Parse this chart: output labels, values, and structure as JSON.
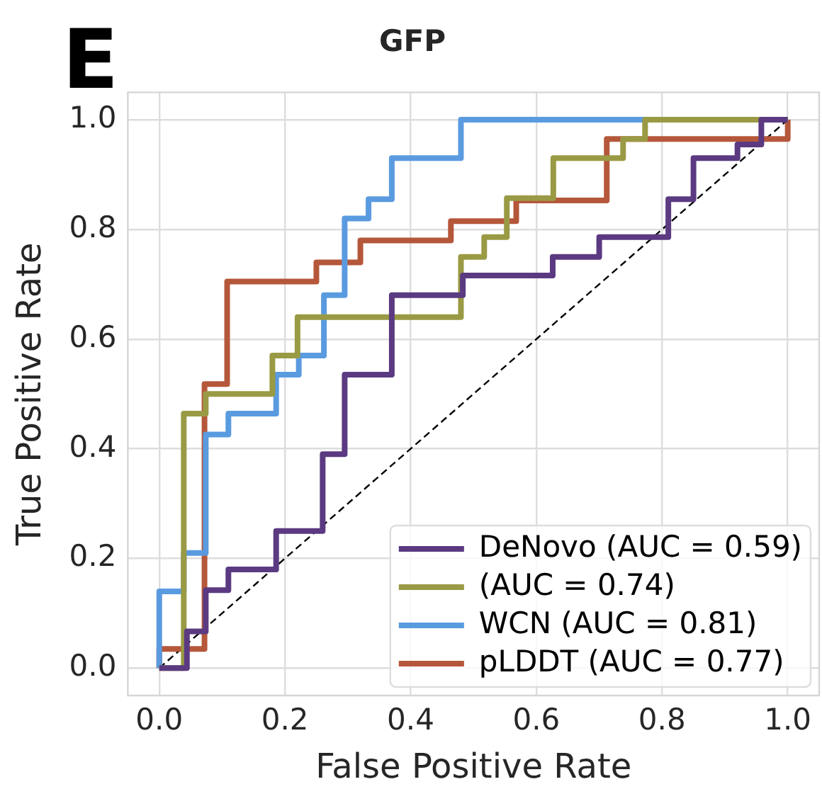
{
  "chart_data": {
    "type": "line",
    "title": "GFP",
    "xlabel": "False Positive Rate",
    "ylabel": "True Positive Rate",
    "annotations": [
      "E"
    ],
    "xlim": [
      -0.05,
      1.05
    ],
    "ylim": [
      -0.05,
      1.05
    ],
    "xticks": [
      {
        "value": 0,
        "label": "0.0"
      },
      0.2,
      0.4,
      0.6,
      0.8,
      {
        "value": 1,
        "label": "1.0"
      }
    ],
    "yticks": [
      {
        "value": 0,
        "label": "0.0"
      },
      0.2,
      0.4,
      0.6,
      0.8,
      {
        "value": 1,
        "label": "1.0"
      }
    ],
    "grid": true,
    "legend": "bottom right",
    "marker": "none",
    "line_style": "solid",
    "series": [
      {
        "name": "DeNovo (AUC = 0.59)",
        "color": "#5b3a82",
        "x": [
          0,
          0.044,
          0.044,
          0.074,
          0.074,
          0.11,
          0.11,
          0.186,
          0.186,
          0.26,
          0.26,
          0.295,
          0.295,
          0.37,
          0.37,
          0.483,
          0.483,
          0.626,
          0.626,
          0.7,
          0.7,
          0.81,
          0.81,
          0.85,
          0.85,
          0.92,
          0.92,
          0.958,
          0.958,
          1
        ],
        "values": [
          0,
          0,
          0.067,
          0.067,
          0.142,
          0.142,
          0.18,
          0.18,
          0.25,
          0.25,
          0.39,
          0.39,
          0.535,
          0.535,
          0.68,
          0.68,
          0.716,
          0.716,
          0.75,
          0.75,
          0.786,
          0.786,
          0.855,
          0.855,
          0.93,
          0.93,
          0.955,
          0.955,
          1,
          1
        ]
      },
      {
        "name": "(AUC = 0.74)",
        "color": "#9a9a45",
        "x": [
          0,
          0.039,
          0.039,
          0.074,
          0.074,
          0.18,
          0.18,
          0.22,
          0.22,
          0.48,
          0.48,
          0.517,
          0.517,
          0.553,
          0.553,
          0.627,
          0.627,
          0.738,
          0.738,
          0.773,
          0.773,
          1
        ],
        "values": [
          0,
          0,
          0.464,
          0.464,
          0.5,
          0.5,
          0.57,
          0.57,
          0.64,
          0.64,
          0.75,
          0.75,
          0.786,
          0.786,
          0.857,
          0.857,
          0.93,
          0.93,
          0.965,
          0.965,
          1,
          1
        ]
      },
      {
        "name": "WCN (AUC = 0.81)",
        "color": "#5a9be0",
        "x": [
          0,
          0,
          0.039,
          0.039,
          0.074,
          0.074,
          0.11,
          0.11,
          0.186,
          0.186,
          0.222,
          0.222,
          0.262,
          0.262,
          0.295,
          0.295,
          0.333,
          0.333,
          0.37,
          0.37,
          0.48,
          0.48,
          1
        ],
        "values": [
          0,
          0.14,
          0.14,
          0.21,
          0.21,
          0.426,
          0.426,
          0.464,
          0.464,
          0.535,
          0.535,
          0.57,
          0.57,
          0.68,
          0.68,
          0.82,
          0.82,
          0.855,
          0.855,
          0.93,
          0.93,
          1,
          1
        ]
      },
      {
        "name": "pLDDT (AUC = 0.77)",
        "color": "#b5573a",
        "x": [
          0,
          0,
          0.072,
          0.072,
          0.108,
          0.108,
          0.25,
          0.25,
          0.32,
          0.32,
          0.464,
          0.464,
          0.568,
          0.568,
          0.712,
          0.712,
          1,
          1
        ],
        "values": [
          0,
          0.035,
          0.035,
          0.518,
          0.518,
          0.705,
          0.705,
          0.74,
          0.74,
          0.78,
          0.78,
          0.815,
          0.815,
          0.853,
          0.853,
          0.965,
          0.965,
          1
        ]
      },
      {
        "color": "#000000",
        "line_style": "dashed",
        "x": [
          0,
          1
        ],
        "values": [
          0,
          1
        ]
      }
    ]
  }
}
